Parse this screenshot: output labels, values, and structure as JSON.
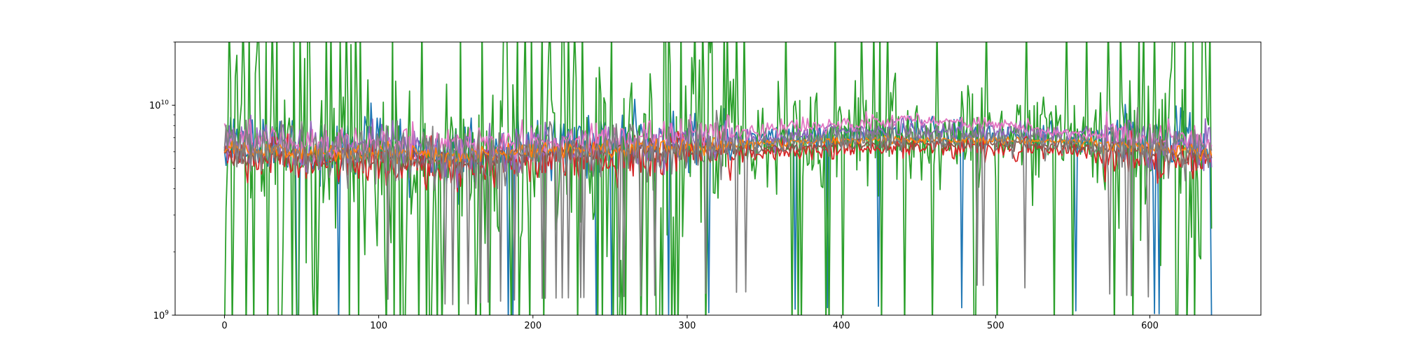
{
  "chart_data": {
    "type": "line",
    "title": "",
    "xlabel": "",
    "ylabel": "",
    "xlim": [
      -32,
      672
    ],
    "ylim": [
      1000000000,
      20000000000
    ],
    "yscale": "log",
    "x_ticks": [
      0,
      100,
      200,
      300,
      400,
      500,
      600
    ],
    "y_ticks": [
      {
        "value": 1000000000,
        "base": "10",
        "exponent": "9"
      },
      {
        "value": 10000000000,
        "base": "10",
        "exponent": "10"
      }
    ],
    "grid": false,
    "legend": "none",
    "n_points": 641,
    "series": [
      {
        "color": "#1f77b4",
        "values": [
          {
            "x": 0,
            "y": 6200000000.0
          },
          {
            "x": 30,
            "y": 7000000000.0
          },
          {
            "x": 60,
            "y": 6000000000.0
          },
          {
            "x": 100,
            "y": 6300000000.0
          },
          {
            "x": 150,
            "y": 5700000000.0
          },
          {
            "x": 200,
            "y": 6400000000.0
          },
          {
            "x": 250,
            "y": 6500000000.0
          },
          {
            "x": 300,
            "y": 6800000000.0
          },
          {
            "x": 350,
            "y": 7000000000.0
          },
          {
            "x": 400,
            "y": 7300000000.0
          },
          {
            "x": 450,
            "y": 7400000000.0
          },
          {
            "x": 500,
            "y": 7100000000.0
          },
          {
            "x": 550,
            "y": 7000000000.0
          },
          {
            "x": 600,
            "y": 6800000000.0
          },
          {
            "x": 640,
            "y": 6600000000.0
          }
        ]
      },
      {
        "color": "#2ca02c",
        "values": [
          {
            "x": 0,
            "y": 6000000000.0
          },
          {
            "x": 30,
            "y": 6200000000.0
          },
          {
            "x": 60,
            "y": 5800000000.0
          },
          {
            "x": 100,
            "y": 6000000000.0
          },
          {
            "x": 150,
            "y": 5500000000.0
          },
          {
            "x": 200,
            "y": 6200000000.0
          },
          {
            "x": 250,
            "y": 6300000000.0
          },
          {
            "x": 300,
            "y": 6500000000.0
          },
          {
            "x": 350,
            "y": 6600000000.0
          },
          {
            "x": 400,
            "y": 7000000000.0
          },
          {
            "x": 450,
            "y": 7200000000.0
          },
          {
            "x": 500,
            "y": 7000000000.0
          },
          {
            "x": 550,
            "y": 6800000000.0
          },
          {
            "x": 600,
            "y": 6500000000.0
          },
          {
            "x": 640,
            "y": 6300000000.0
          }
        ]
      },
      {
        "color": "#d62728",
        "values": [
          {
            "x": 0,
            "y": 5600000000.0
          },
          {
            "x": 30,
            "y": 5600000000.0
          },
          {
            "x": 60,
            "y": 5200000000.0
          },
          {
            "x": 100,
            "y": 5300000000.0
          },
          {
            "x": 150,
            "y": 4900000000.0
          },
          {
            "x": 200,
            "y": 5500000000.0
          },
          {
            "x": 250,
            "y": 5600000000.0
          },
          {
            "x": 300,
            "y": 5900000000.0
          },
          {
            "x": 350,
            "y": 6000000000.0
          },
          {
            "x": 400,
            "y": 6200000000.0
          },
          {
            "x": 450,
            "y": 6300000000.0
          },
          {
            "x": 500,
            "y": 6200000000.0
          },
          {
            "x": 550,
            "y": 6100000000.0
          },
          {
            "x": 600,
            "y": 5600000000.0
          },
          {
            "x": 640,
            "y": 5400000000.0
          }
        ]
      },
      {
        "color": "#9467bd",
        "values": [
          {
            "x": 0,
            "y": 6500000000.0
          },
          {
            "x": 30,
            "y": 6800000000.0
          },
          {
            "x": 60,
            "y": 6200000000.0
          },
          {
            "x": 100,
            "y": 6400000000.0
          },
          {
            "x": 150,
            "y": 5800000000.0
          },
          {
            "x": 200,
            "y": 6300000000.0
          },
          {
            "x": 250,
            "y": 6400000000.0
          },
          {
            "x": 300,
            "y": 6700000000.0
          },
          {
            "x": 350,
            "y": 6900000000.0
          },
          {
            "x": 400,
            "y": 7500000000.0
          },
          {
            "x": 450,
            "y": 7600000000.0
          },
          {
            "x": 500,
            "y": 7400000000.0
          },
          {
            "x": 550,
            "y": 7100000000.0
          },
          {
            "x": 600,
            "y": 6700000000.0
          },
          {
            "x": 640,
            "y": 6500000000.0
          }
        ]
      },
      {
        "color": "#e377c2",
        "values": [
          {
            "x": 0,
            "y": 6800000000.0
          },
          {
            "x": 30,
            "y": 6900000000.0
          },
          {
            "x": 60,
            "y": 6500000000.0
          },
          {
            "x": 100,
            "y": 6600000000.0
          },
          {
            "x": 150,
            "y": 6400000000.0
          },
          {
            "x": 200,
            "y": 6600000000.0
          },
          {
            "x": 250,
            "y": 6800000000.0
          },
          {
            "x": 300,
            "y": 7200000000.0
          },
          {
            "x": 350,
            "y": 7600000000.0
          },
          {
            "x": 400,
            "y": 8200000000.0
          },
          {
            "x": 450,
            "y": 8500000000.0
          },
          {
            "x": 500,
            "y": 8000000000.0
          },
          {
            "x": 550,
            "y": 7400000000.0
          },
          {
            "x": 600,
            "y": 7100000000.0
          },
          {
            "x": 640,
            "y": 6800000000.0
          }
        ]
      },
      {
        "color": "#8c564b",
        "values": [
          {
            "x": 0,
            "y": 5900000000.0
          },
          {
            "x": 30,
            "y": 5900000000.0
          },
          {
            "x": 60,
            "y": 5600000000.0
          },
          {
            "x": 100,
            "y": 5700000000.0
          },
          {
            "x": 150,
            "y": 5400000000.0
          },
          {
            "x": 200,
            "y": 5800000000.0
          },
          {
            "x": 250,
            "y": 5900000000.0
          },
          {
            "x": 300,
            "y": 6100000000.0
          },
          {
            "x": 350,
            "y": 6300000000.0
          },
          {
            "x": 400,
            "y": 6500000000.0
          },
          {
            "x": 450,
            "y": 6600000000.0
          },
          {
            "x": 500,
            "y": 6500000000.0
          },
          {
            "x": 550,
            "y": 6400000000.0
          },
          {
            "x": 600,
            "y": 5900000000.0
          },
          {
            "x": 640,
            "y": 5700000000.0
          }
        ]
      },
      {
        "color": "#ff7f0e",
        "values": [
          {
            "x": 0,
            "y": 6100000000.0
          },
          {
            "x": 30,
            "y": 6100000000.0
          },
          {
            "x": 60,
            "y": 5900000000.0
          },
          {
            "x": 100,
            "y": 6000000000.0
          },
          {
            "x": 150,
            "y": 5700000000.0
          },
          {
            "x": 200,
            "y": 6100000000.0
          },
          {
            "x": 250,
            "y": 6200000000.0
          },
          {
            "x": 300,
            "y": 6400000000.0
          },
          {
            "x": 350,
            "y": 6600000000.0
          },
          {
            "x": 400,
            "y": 6800000000.0
          },
          {
            "x": 450,
            "y": 6900000000.0
          },
          {
            "x": 500,
            "y": 6800000000.0
          },
          {
            "x": 550,
            "y": 6700000000.0
          },
          {
            "x": 600,
            "y": 6200000000.0
          },
          {
            "x": 640,
            "y": 6000000000.0
          }
        ]
      },
      {
        "color": "#7f7f7f",
        "values": [
          {
            "x": 0,
            "y": 6300000000.0
          },
          {
            "x": 30,
            "y": 6300000000.0
          },
          {
            "x": 60,
            "y": 5900000000.0
          },
          {
            "x": 100,
            "y": 6000000000.0
          },
          {
            "x": 150,
            "y": 5600000000.0
          },
          {
            "x": 200,
            "y": 6000000000.0
          },
          {
            "x": 250,
            "y": 6100000000.0
          },
          {
            "x": 300,
            "y": 6300000000.0
          },
          {
            "x": 350,
            "y": 6500000000.0
          },
          {
            "x": 400,
            "y": 6900000000.0
          },
          {
            "x": 450,
            "y": 7100000000.0
          },
          {
            "x": 500,
            "y": 6900000000.0
          },
          {
            "x": 550,
            "y": 6500000000.0
          },
          {
            "x": 600,
            "y": 6100000000.0
          },
          {
            "x": 640,
            "y": 5900000000.0
          }
        ]
      }
    ]
  }
}
